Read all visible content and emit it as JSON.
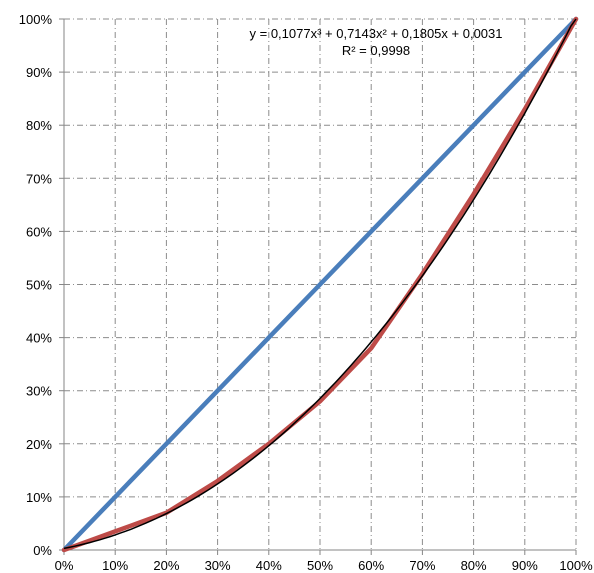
{
  "chart_data": {
    "type": "line",
    "x": [
      0,
      0.1,
      0.2,
      0.3,
      0.4,
      0.5,
      0.6,
      0.7,
      0.8,
      0.9,
      1.0
    ],
    "series": [
      {
        "role": "equality-line",
        "color": "#4a7ebb",
        "values": [
          0,
          0.1,
          0.2,
          0.3,
          0.4,
          0.5,
          0.6,
          0.7,
          0.8,
          0.9,
          1.0
        ]
      },
      {
        "role": "data-curve",
        "color": "#be4b48",
        "values": [
          0,
          0.035,
          0.07,
          0.13,
          0.2,
          0.28,
          0.38,
          0.52,
          0.67,
          0.83,
          1.0
        ]
      },
      {
        "role": "trendline",
        "color": "#000000",
        "coefficients": [
          0.1077,
          0.7143,
          0.1805,
          0.0031
        ]
      }
    ],
    "xlim": [
      0,
      1
    ],
    "ylim": [
      0,
      1
    ],
    "x_ticks": [
      "0%",
      "10%",
      "20%",
      "30%",
      "40%",
      "50%",
      "60%",
      "70%",
      "80%",
      "90%",
      "100%"
    ],
    "y_ticks": [
      "0%",
      "10%",
      "20%",
      "30%",
      "40%",
      "50%",
      "60%",
      "70%",
      "80%",
      "90%",
      "100%"
    ],
    "grid": true,
    "annotations": {
      "equation": "y = 0,1077x³ + 0,7143x² + 0,1805x + 0,0031",
      "r_squared": "R² = 0,9998"
    }
  }
}
